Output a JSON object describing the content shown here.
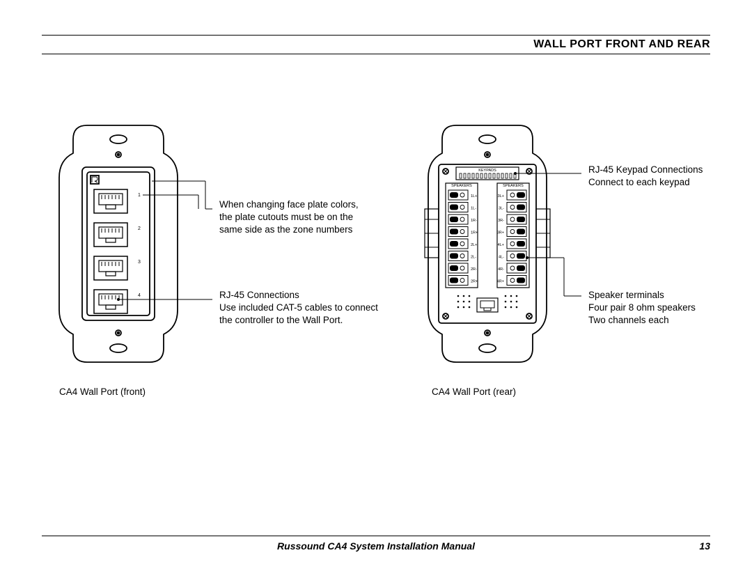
{
  "header": {
    "title": "WALL PORT FRONT AND REAR"
  },
  "front": {
    "caption": "CA4 Wall Port (front)",
    "zone_numbers": [
      "1",
      "2",
      "3",
      "4"
    ],
    "callout1": "When changing face plate colors,\nthe plate cutouts must be on the\nsame side as the zone numbers",
    "callout2": "RJ-45 Connections\nUse included CAT-5 cables to connect\nthe controller to the Wall Port."
  },
  "rear": {
    "caption": "CA4 Wall Port (rear)",
    "keypads_label": "KEYPADS",
    "speakers_label_l": "SPEAKERS",
    "speakers_label_r": "SPEAKERS",
    "left_terms": [
      "1L+",
      "1L-",
      "1R-",
      "1R+",
      "2L+",
      "2L-",
      "2R-",
      "2R+"
    ],
    "right_terms": [
      "3L+",
      "3L-",
      "3R-",
      "3R+",
      "4L+",
      "4L-",
      "4R-",
      "4R+"
    ],
    "callout1": "RJ-45 Keypad Connections\nConnect to each keypad",
    "callout2": "Speaker terminals\nFour pair 8 ohm speakers\nTwo channels each"
  },
  "footer": {
    "title": "Russound CA4 System Installation Manual",
    "page": "13"
  },
  "style": {
    "stroke": "#000000",
    "stroke_width": 1.8,
    "stroke_width_thin": 1.2,
    "bg": "#ffffff",
    "text_color": "#000000",
    "tiny_font": 5.5,
    "small_font": 7
  }
}
